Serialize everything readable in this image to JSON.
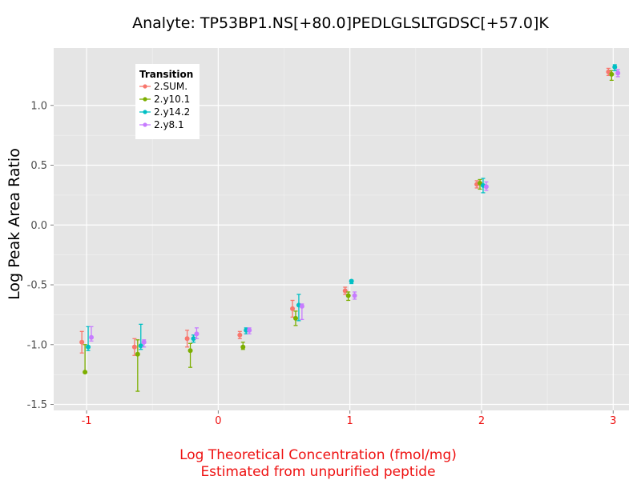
{
  "chart_data": {
    "type": "scatter",
    "title": "Analyte: TP53BP1.NS[+80.0]PEDLGLSLTGDSC[+57.0]K",
    "xlabel_line1": "Log Theoretical Concentration (fmol/mg)",
    "xlabel_line2": "Estimated from unpurified peptide",
    "ylabel": "Log Peak Area Ratio",
    "xlim": [
      -1.25,
      3.12
    ],
    "ylim": [
      -1.55,
      1.48
    ],
    "x_ticks": [
      -1,
      0,
      1,
      2,
      3
    ],
    "x_tick_labels": [
      "-1",
      "0",
      "1",
      "2",
      "3"
    ],
    "y_ticks": [
      -1.5,
      -1.0,
      -0.5,
      0.0,
      0.5,
      1.0
    ],
    "y_tick_labels": [
      "-1.5",
      "-1.0",
      "-0.5",
      "0.0",
      "0.5",
      "1.0"
    ],
    "legend": {
      "title": "Transition",
      "placement": "top-left"
    },
    "series": [
      {
        "name": "2.SUM.",
        "color": "#F8766D",
        "points": [
          {
            "x": -1.0,
            "y": -0.98,
            "lo": -1.07,
            "hi": -0.89
          },
          {
            "x": -0.6,
            "y": -1.02,
            "lo": -1.09,
            "hi": -0.95
          },
          {
            "x": -0.2,
            "y": -0.95,
            "lo": -1.02,
            "hi": -0.88
          },
          {
            "x": 0.2,
            "y": -0.92,
            "lo": -0.95,
            "hi": -0.89
          },
          {
            "x": 0.6,
            "y": -0.7,
            "lo": -0.77,
            "hi": -0.63
          },
          {
            "x": 1.0,
            "y": -0.55,
            "lo": -0.58,
            "hi": -0.52
          },
          {
            "x": 2.0,
            "y": 0.34,
            "lo": 0.31,
            "hi": 0.37
          },
          {
            "x": 3.0,
            "y": 1.28,
            "lo": 1.25,
            "hi": 1.31
          }
        ]
      },
      {
        "name": "2.y10.1",
        "color": "#7CAE00",
        "points": [
          {
            "x": -1.0,
            "y": -1.23,
            "lo": -1.23,
            "hi": -1.0
          },
          {
            "x": -0.6,
            "y": -1.08,
            "lo": -1.39,
            "hi": -0.96
          },
          {
            "x": -0.2,
            "y": -1.05,
            "lo": -1.19,
            "hi": -0.99
          },
          {
            "x": 0.2,
            "y": -1.02,
            "lo": -1.04,
            "hi": -0.98
          },
          {
            "x": 0.6,
            "y": -0.78,
            "lo": -0.84,
            "hi": -0.72
          },
          {
            "x": 1.0,
            "y": -0.59,
            "lo": -0.63,
            "hi": -0.56
          },
          {
            "x": 2.0,
            "y": 0.35,
            "lo": 0.3,
            "hi": 0.38
          },
          {
            "x": 3.0,
            "y": 1.26,
            "lo": 1.21,
            "hi": 1.29
          }
        ]
      },
      {
        "name": "2.y14.2",
        "color": "#00BFC4",
        "points": [
          {
            "x": -1.0,
            "y": -1.02,
            "lo": -1.05,
            "hi": -0.85
          },
          {
            "x": -0.6,
            "y": -1.01,
            "lo": -1.04,
            "hi": -0.83
          },
          {
            "x": -0.2,
            "y": -0.95,
            "lo": -0.98,
            "hi": -0.92
          },
          {
            "x": 0.2,
            "y": -0.88,
            "lo": -0.91,
            "hi": -0.86
          },
          {
            "x": 0.6,
            "y": -0.67,
            "lo": -0.8,
            "hi": -0.58
          },
          {
            "x": 1.0,
            "y": -0.47,
            "lo": -0.49,
            "hi": -0.46
          },
          {
            "x": 2.0,
            "y": 0.33,
            "lo": 0.27,
            "hi": 0.39
          },
          {
            "x": 3.0,
            "y": 1.32,
            "lo": 1.29,
            "hi": 1.34
          }
        ]
      },
      {
        "name": "2.y8.1",
        "color": "#C77CFF",
        "points": [
          {
            "x": -1.0,
            "y": -0.94,
            "lo": -0.97,
            "hi": -0.85
          },
          {
            "x": -0.6,
            "y": -0.98,
            "lo": -1.02,
            "hi": -0.96
          },
          {
            "x": -0.2,
            "y": -0.91,
            "lo": -0.95,
            "hi": -0.86
          },
          {
            "x": 0.2,
            "y": -0.88,
            "lo": -0.91,
            "hi": -0.86
          },
          {
            "x": 0.6,
            "y": -0.68,
            "lo": -0.79,
            "hi": -0.66
          },
          {
            "x": 1.0,
            "y": -0.59,
            "lo": -0.62,
            "hi": -0.56
          },
          {
            "x": 2.0,
            "y": 0.32,
            "lo": 0.29,
            "hi": 0.36
          },
          {
            "x": 3.0,
            "y": 1.27,
            "lo": 1.24,
            "hi": 1.3
          }
        ]
      }
    ]
  }
}
